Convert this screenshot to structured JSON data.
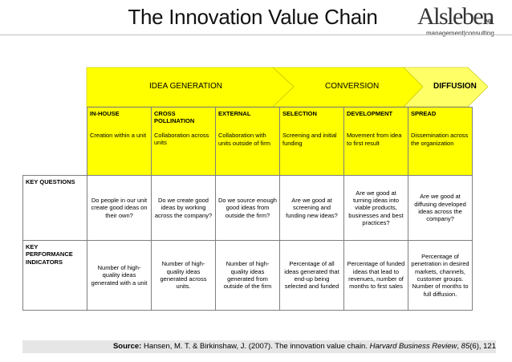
{
  "header": {
    "title": "The Innovation Value Chain",
    "logo_word": "Alsleben",
    "logo_suffix": "ag",
    "logo_tagline": "management|consulting"
  },
  "colors": {
    "accent_yellow": "#ffff00",
    "chevron_fill_light": "#ffff66",
    "grid_border": "#7f7f7f",
    "source_bar": "#e6e6e6"
  },
  "stages": [
    {
      "label": "IDEA GENERATION"
    },
    {
      "label": "CONVERSION"
    },
    {
      "label": "DIFFUSION"
    }
  ],
  "columns": [
    {
      "name": "IN-HOUSE",
      "desc": "Creation within a unit"
    },
    {
      "name": "CROSS POLLINATION",
      "desc": "Collaboration across units"
    },
    {
      "name": "EXTERNAL",
      "desc": "Collaboration with units outside of firm"
    },
    {
      "name": "SELECTION",
      "desc": "Screening and initial funding"
    },
    {
      "name": "DEVELOPMENT",
      "desc": "Movement from idea to first result"
    },
    {
      "name": "SPREAD",
      "desc": "Dissemination across the organization"
    }
  ],
  "rows": [
    {
      "label": "KEY QUESTIONS",
      "cells": [
        "Do people in our unit create good ideas on their own?",
        "Do we create good ideas by working across the company?",
        "Do we source enough good ideas from outside the firm?",
        "Are we good at screening and funding new ideas?",
        "Are we good at turning ideas into viable products, businesses and best practices?",
        "Are we good at diffusing developed ideas across the company?"
      ]
    },
    {
      "label": "KEY PERFORMANCE INDICATORS",
      "cells": [
        "Number of high-quality ideas generated with a unit",
        "Number of high-quality ideas generated across units.",
        "Number of high-quality ideas generated from outside of the firm",
        "Percentage of all ideas generated that end-up being selected and funded",
        "Percentage of funded ideas that lead to revenues, number of months to first sales",
        "Percentage of penetration in desired markets, channels, customer groups. Number of months to full diffusion."
      ]
    }
  ],
  "source": {
    "label": "Source:",
    "authors": "Hansen, M. T. & Birkinshaw, J. (2007). The innovation value chain.",
    "journal": "Harvard Business Review",
    "volume": "85",
    "issue_pages": "(6), 121"
  }
}
